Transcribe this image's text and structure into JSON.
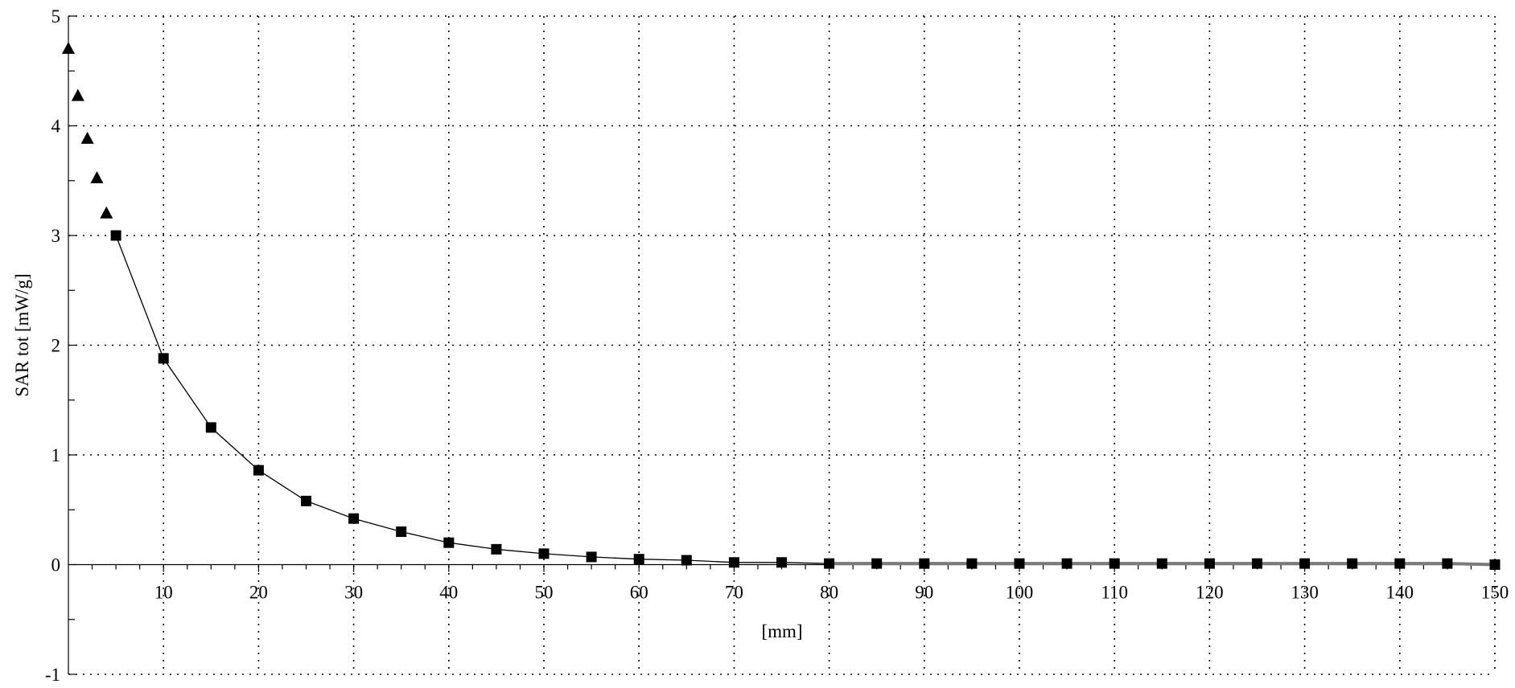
{
  "chart_data": {
    "type": "scatter",
    "title": "",
    "xlabel": "[mm]",
    "ylabel": "SAR tot [mW/g]",
    "xlim": [
      0,
      150
    ],
    "ylim": [
      -1,
      5
    ],
    "x_ticks": [
      10,
      20,
      30,
      40,
      50,
      60,
      70,
      80,
      90,
      100,
      110,
      120,
      130,
      140,
      150
    ],
    "y_ticks": [
      -1,
      0,
      1,
      2,
      3,
      4,
      5
    ],
    "grid": true,
    "series": [
      {
        "marker": "triangle",
        "color": "#000000",
        "line": false,
        "x": [
          0,
          1,
          2,
          3,
          4
        ],
        "y": [
          4.7,
          4.27,
          3.88,
          3.52,
          3.2
        ]
      },
      {
        "marker": "square",
        "color": "#000000",
        "line": true,
        "x": [
          5,
          10,
          15,
          20,
          25,
          30,
          35,
          40,
          45,
          50,
          55,
          60,
          65,
          70,
          75,
          80,
          85,
          90,
          95,
          100,
          105,
          110,
          115,
          120,
          125,
          130,
          135,
          140,
          145,
          150
        ],
        "y": [
          3.0,
          1.88,
          1.25,
          0.86,
          0.58,
          0.42,
          0.3,
          0.2,
          0.14,
          0.1,
          0.07,
          0.05,
          0.04,
          0.02,
          0.02,
          0.01,
          0.01,
          0.01,
          0.01,
          0.01,
          0.01,
          0.01,
          0.01,
          0.01,
          0.01,
          0.01,
          0.01,
          0.01,
          0.01,
          0.0
        ]
      }
    ]
  }
}
